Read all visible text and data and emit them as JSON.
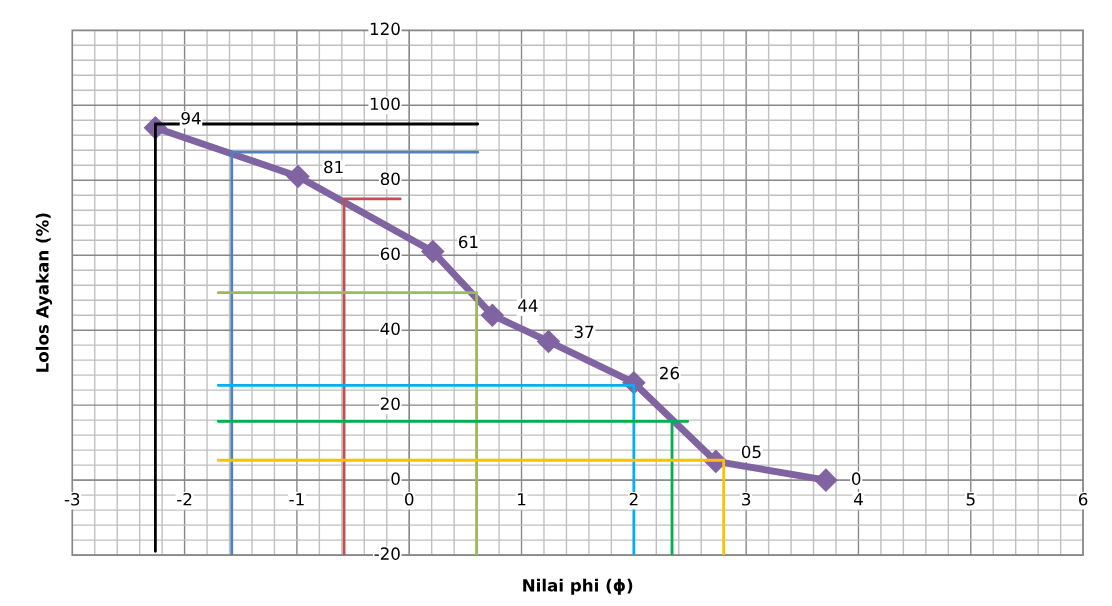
{
  "chart_data": {
    "type": "line",
    "xlabel": "Nilai phi (ϕ)",
    "ylabel": "Lolos Ayakan (%)",
    "xlim": [
      -3,
      6
    ],
    "xticks": [
      -3,
      -2,
      -1,
      0,
      1,
      2,
      3,
      4,
      5,
      6
    ],
    "ylim": [
      -20,
      120
    ],
    "yticks": [
      -20,
      0,
      20,
      40,
      60,
      80,
      100,
      120
    ],
    "grid": true,
    "series": [
      {
        "color": "#000000",
        "marker": "none",
        "x": [
          -2.26,
          -2.26,
          0.61
        ],
        "values": [
          -19,
          95,
          95
        ]
      },
      {
        "color": "#4f81bd",
        "marker": "none",
        "x": [
          -1.58,
          -1.58,
          0.61
        ],
        "values": [
          -20,
          87.5,
          87.5
        ]
      },
      {
        "color": "#c0504d",
        "marker": "none",
        "x": [
          -0.58,
          -0.58,
          -0.08
        ],
        "values": [
          -20,
          75,
          75
        ]
      },
      {
        "color": "#9bbb59",
        "marker": "none",
        "x": [
          -1.7,
          0.6,
          0.6
        ],
        "values": [
          50,
          50,
          -20
        ]
      },
      {
        "color": "#00b0f0",
        "marker": "none",
        "x": [
          -1.7,
          2.0,
          2.0
        ],
        "values": [
          25.3,
          25.3,
          -20
        ]
      },
      {
        "color": "#00b050",
        "marker": "none",
        "x": [
          -1.7,
          2.48,
          2.34,
          2.34
        ],
        "values": [
          15.7,
          15.7,
          15.7,
          -20
        ]
      },
      {
        "color": "#ffc000",
        "marker": "none",
        "x": [
          -1.7,
          2.8,
          2.8
        ],
        "values": [
          5.3,
          5.3,
          -20
        ]
      },
      {
        "color": "#8064a2",
        "marker": "diamond",
        "x": [
          -2.26,
          -0.99,
          0.21,
          0.74,
          1.24,
          2.0,
          2.73,
          3.71
        ],
        "values": [
          94,
          81,
          61,
          44,
          37,
          26,
          5,
          0
        ],
        "value_labels": [
          "94",
          "81",
          "61",
          "44",
          "37",
          "26",
          "05",
          "0"
        ]
      }
    ]
  }
}
